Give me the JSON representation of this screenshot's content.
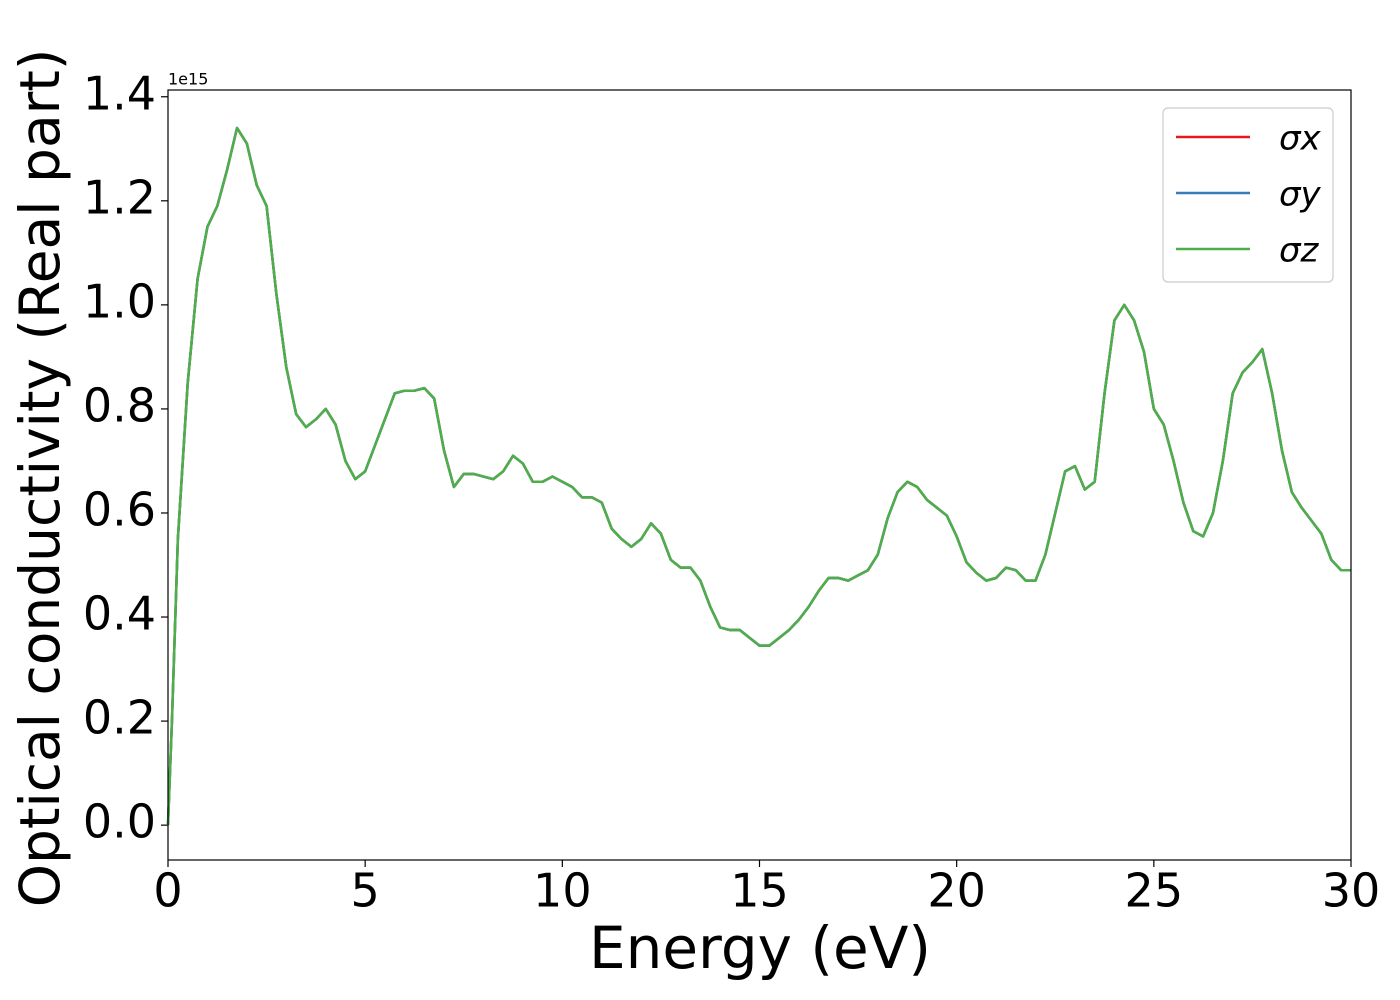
{
  "chart_data": {
    "type": "line",
    "xlabel": "Energy (eV)",
    "ylabel": "Optical conductivity (Real part)",
    "offset_text": "1e15",
    "x": [
      0,
      0.1,
      0.25,
      0.5,
      0.75,
      1,
      1.25,
      1.5,
      1.75,
      2,
      2.25,
      2.5,
      2.75,
      3,
      3.25,
      3.5,
      3.75,
      4,
      4.25,
      4.5,
      4.75,
      5,
      5.25,
      5.5,
      5.75,
      6,
      6.25,
      6.5,
      6.75,
      7,
      7.25,
      7.5,
      7.75,
      8,
      8.25,
      8.5,
      8.75,
      9,
      9.25,
      9.5,
      9.75,
      10,
      10.25,
      10.5,
      10.75,
      11,
      11.25,
      11.5,
      11.75,
      12,
      12.25,
      12.5,
      12.75,
      13,
      13.25,
      13.5,
      13.75,
      14,
      14.25,
      14.5,
      14.75,
      15,
      15.25,
      15.5,
      15.75,
      16,
      16.25,
      16.5,
      16.75,
      17,
      17.25,
      17.5,
      17.75,
      18,
      18.25,
      18.5,
      18.75,
      19,
      19.25,
      19.5,
      19.75,
      20,
      20.25,
      20.5,
      20.75,
      21,
      21.25,
      21.5,
      21.75,
      22,
      22.25,
      22.5,
      22.75,
      23,
      23.25,
      23.5,
      23.75,
      24,
      24.25,
      24.5,
      24.75,
      25,
      25.25,
      25.5,
      25.75,
      26,
      26.25,
      26.5,
      26.75,
      27,
      27.25,
      27.5,
      27.75,
      28,
      28.25,
      28.5,
      28.75,
      29,
      29.25,
      29.5,
      29.75,
      30
    ],
    "series": [
      {
        "name": "σx",
        "color": "#e41a1c",
        "values": [
          0,
          0.2,
          0.55,
          0.85,
          1.05,
          1.15,
          1.19,
          1.26,
          1.34,
          1.31,
          1.23,
          1.19,
          1.02,
          0.88,
          0.79,
          0.765,
          0.78,
          0.8,
          0.77,
          0.7,
          0.665,
          0.68,
          0.73,
          0.78,
          0.83,
          0.835,
          0.835,
          0.84,
          0.82,
          0.72,
          0.65,
          0.675,
          0.675,
          0.67,
          0.665,
          0.68,
          0.71,
          0.695,
          0.66,
          0.66,
          0.67,
          0.66,
          0.65,
          0.63,
          0.63,
          0.62,
          0.57,
          0.55,
          0.535,
          0.55,
          0.58,
          0.56,
          0.51,
          0.495,
          0.495,
          0.47,
          0.42,
          0.38,
          0.375,
          0.375,
          0.36,
          0.345,
          0.345,
          0.36,
          0.375,
          0.395,
          0.42,
          0.45,
          0.475,
          0.475,
          0.47,
          0.48,
          0.49,
          0.52,
          0.59,
          0.64,
          0.66,
          0.65,
          0.625,
          0.61,
          0.595,
          0.555,
          0.505,
          0.485,
          0.47,
          0.475,
          0.495,
          0.49,
          0.47,
          0.47,
          0.52,
          0.6,
          0.68,
          0.69,
          0.645,
          0.66,
          0.83,
          0.97,
          1.0,
          0.97,
          0.91,
          0.8,
          0.77,
          0.7,
          0.62,
          0.565,
          0.555,
          0.6,
          0.7,
          0.83,
          0.87,
          0.89,
          0.915,
          0.83,
          0.72,
          0.64,
          0.61,
          0.585,
          0.56,
          0.51,
          0.49,
          0.49
        ]
      },
      {
        "name": "σy",
        "color": "#377eb8",
        "values": [
          0,
          0.2,
          0.55,
          0.85,
          1.05,
          1.15,
          1.19,
          1.26,
          1.34,
          1.31,
          1.23,
          1.19,
          1.02,
          0.88,
          0.79,
          0.765,
          0.78,
          0.8,
          0.77,
          0.7,
          0.665,
          0.68,
          0.73,
          0.78,
          0.83,
          0.835,
          0.835,
          0.84,
          0.82,
          0.72,
          0.65,
          0.675,
          0.675,
          0.67,
          0.665,
          0.68,
          0.71,
          0.695,
          0.66,
          0.66,
          0.67,
          0.66,
          0.65,
          0.63,
          0.63,
          0.62,
          0.57,
          0.55,
          0.535,
          0.55,
          0.58,
          0.56,
          0.51,
          0.495,
          0.495,
          0.47,
          0.42,
          0.38,
          0.375,
          0.375,
          0.36,
          0.345,
          0.345,
          0.36,
          0.375,
          0.395,
          0.42,
          0.45,
          0.475,
          0.475,
          0.47,
          0.48,
          0.49,
          0.52,
          0.59,
          0.64,
          0.66,
          0.65,
          0.625,
          0.61,
          0.595,
          0.555,
          0.505,
          0.485,
          0.47,
          0.475,
          0.495,
          0.49,
          0.47,
          0.47,
          0.52,
          0.6,
          0.68,
          0.69,
          0.645,
          0.66,
          0.83,
          0.97,
          1.0,
          0.97,
          0.91,
          0.8,
          0.77,
          0.7,
          0.62,
          0.565,
          0.555,
          0.6,
          0.7,
          0.83,
          0.87,
          0.89,
          0.915,
          0.83,
          0.72,
          0.64,
          0.61,
          0.585,
          0.56,
          0.51,
          0.49,
          0.49
        ]
      },
      {
        "name": "σz",
        "color": "#4daf4a",
        "values": [
          0,
          0.2,
          0.55,
          0.85,
          1.05,
          1.15,
          1.19,
          1.26,
          1.34,
          1.31,
          1.23,
          1.19,
          1.02,
          0.88,
          0.79,
          0.765,
          0.78,
          0.8,
          0.77,
          0.7,
          0.665,
          0.68,
          0.73,
          0.78,
          0.83,
          0.835,
          0.835,
          0.84,
          0.82,
          0.72,
          0.65,
          0.675,
          0.675,
          0.67,
          0.665,
          0.68,
          0.71,
          0.695,
          0.66,
          0.66,
          0.67,
          0.66,
          0.65,
          0.63,
          0.63,
          0.62,
          0.57,
          0.55,
          0.535,
          0.55,
          0.58,
          0.56,
          0.51,
          0.495,
          0.495,
          0.47,
          0.42,
          0.38,
          0.375,
          0.375,
          0.36,
          0.345,
          0.345,
          0.36,
          0.375,
          0.395,
          0.42,
          0.45,
          0.475,
          0.475,
          0.47,
          0.48,
          0.49,
          0.52,
          0.59,
          0.64,
          0.66,
          0.65,
          0.625,
          0.61,
          0.595,
          0.555,
          0.505,
          0.485,
          0.47,
          0.475,
          0.495,
          0.49,
          0.47,
          0.47,
          0.52,
          0.6,
          0.68,
          0.69,
          0.645,
          0.66,
          0.83,
          0.97,
          1.0,
          0.97,
          0.91,
          0.8,
          0.77,
          0.7,
          0.62,
          0.565,
          0.555,
          0.6,
          0.7,
          0.83,
          0.87,
          0.89,
          0.915,
          0.83,
          0.72,
          0.64,
          0.61,
          0.585,
          0.56,
          0.51,
          0.49,
          0.49
        ]
      }
    ],
    "xlim": [
      0,
      30
    ],
    "xticks": [
      0,
      5,
      10,
      15,
      20,
      25,
      30
    ],
    "ylim": [
      -0.067,
      1.413
    ],
    "yticks": [
      {
        "value": 0,
        "label": "0.0"
      },
      0.2,
      0.4,
      0.6,
      0.8,
      {
        "value": 1,
        "label": "1.0"
      },
      1.2,
      1.4
    ],
    "grid": false,
    "legend": "upper right"
  }
}
